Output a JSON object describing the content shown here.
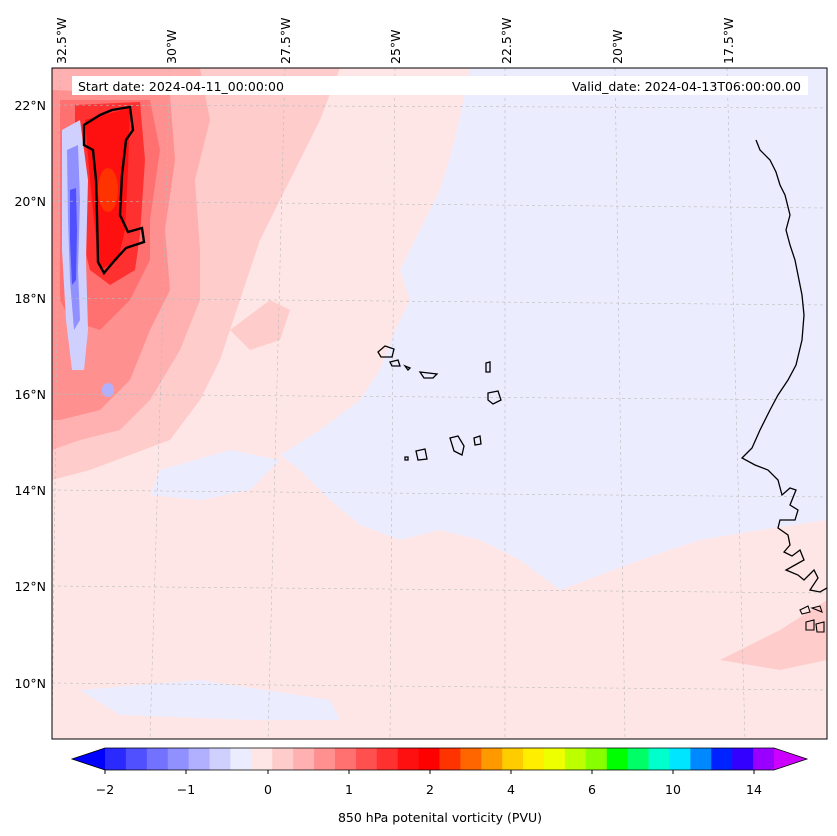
{
  "header": {
    "start_date": "Start date: 2024-04-11_00:00:00",
    "valid_date": "Valid_date: 2024-04-13T06:00:00.00"
  },
  "axes": {
    "lon_labels": [
      "32.5°W",
      "30°W",
      "27.5°W",
      "25°W",
      "22.5°W",
      "20°W",
      "17.5°W"
    ],
    "lat_labels": [
      "22°N",
      "20°N",
      "18°N",
      "16°N",
      "14°N",
      "12°N",
      "10°N"
    ]
  },
  "colorbar": {
    "label": "850 hPa potenital vorticity (PVU)",
    "tick_labels": [
      "−2",
      "−1",
      "0",
      "1",
      "2",
      "4",
      "6",
      "10",
      "14"
    ],
    "colors": [
      "#0000ff",
      "#2a2aff",
      "#5050ff",
      "#7272ff",
      "#9090ff",
      "#b0b0ff",
      "#d0d0ff",
      "#ececff",
      "#ffe6e6",
      "#ffcccc",
      "#ffb0b0",
      "#ff9090",
      "#ff7070",
      "#ff5050",
      "#ff3030",
      "#ff1010",
      "#ff0000",
      "#ff3300",
      "#ff6600",
      "#ff9900",
      "#ffcc00",
      "#ffee00",
      "#eeff00",
      "#bbff00",
      "#88ff00",
      "#00ff00",
      "#00ff66",
      "#00ffcc",
      "#00e5ff",
      "#0088ff",
      "#0022ff",
      "#3300ff",
      "#9900ff",
      "#cc00ff"
    ]
  },
  "chart_data": {
    "type": "heatmap",
    "title": "850 hPa potential vorticity, Start 2024-04-11 00Z, Valid 2024-04-13 06Z",
    "variable": "850 hPa potenital vorticity (PVU)",
    "levels": [
      -2,
      -1,
      0,
      1,
      2,
      4,
      6,
      10,
      14
    ],
    "lon_range": [
      -33,
      -16
    ],
    "lat_range": [
      9,
      23
    ],
    "features": [
      {
        "name": "strong positive PV band",
        "lon": -31.5,
        "lat": 20.5,
        "value": 2.5
      },
      {
        "name": "negative PV streak",
        "lon": -32.3,
        "lat": 19.0,
        "value": -1.5
      },
      {
        "name": "weak negative PV region",
        "lon": -21,
        "lat": 15.5,
        "value": -0.2
      },
      {
        "name": "weak positive background",
        "lon": -25,
        "lat": 11,
        "value": 0.2
      }
    ],
    "land": [
      "Cape Verde islands",
      "West African coast"
    ]
  },
  "colors": {
    "background_pos": "#ffe6e6",
    "background_neg": "#ececff",
    "contour": "#000000"
  }
}
